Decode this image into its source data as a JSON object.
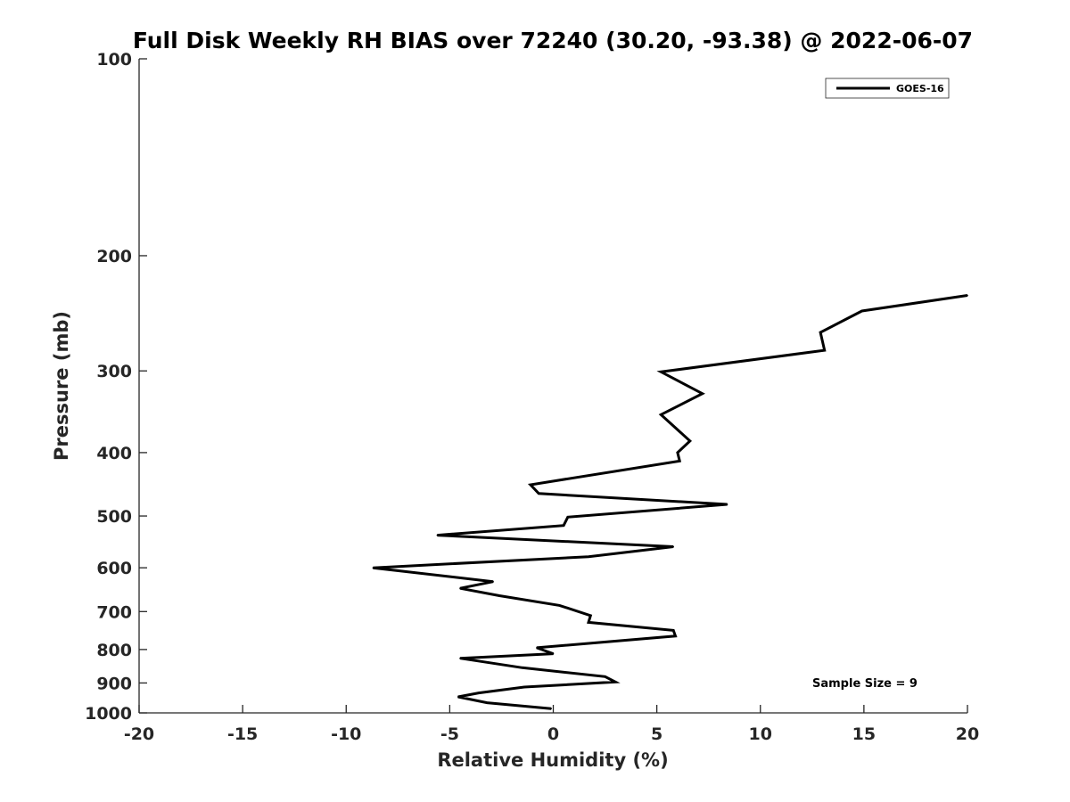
{
  "chart_data": {
    "type": "line",
    "title": "Full Disk Weekly RH BIAS over 72240 (30.20, -93.38) @ 2022-06-07",
    "xlabel": "Relative Humidity (%)",
    "ylabel": "Pressure (mb)",
    "xlim": [
      -20,
      20
    ],
    "ylim": [
      100,
      1000
    ],
    "y_scale": "log",
    "y_reversed": true,
    "x_ticks": [
      -20,
      -15,
      -10,
      -5,
      0,
      5,
      10,
      15,
      20
    ],
    "y_ticks": [
      100,
      200,
      300,
      400,
      500,
      600,
      700,
      800,
      900,
      1000
    ],
    "grid": false,
    "legend_position": "top-right",
    "annotation": "Sample Size = 9",
    "line_color": "#000000",
    "series": [
      {
        "name": "GOES-16",
        "points": [
          {
            "x": -0.1,
            "y": 985
          },
          {
            "x": -3.2,
            "y": 965
          },
          {
            "x": -4.6,
            "y": 945
          },
          {
            "x": -3.6,
            "y": 932
          },
          {
            "x": -1.4,
            "y": 913
          },
          {
            "x": 3.0,
            "y": 897
          },
          {
            "x": 2.5,
            "y": 880
          },
          {
            "x": -1.5,
            "y": 853
          },
          {
            "x": -4.5,
            "y": 825
          },
          {
            "x": 0.0,
            "y": 812
          },
          {
            "x": -0.8,
            "y": 795
          },
          {
            "x": 5.9,
            "y": 763
          },
          {
            "x": 5.8,
            "y": 748
          },
          {
            "x": 1.7,
            "y": 727
          },
          {
            "x": 1.8,
            "y": 710
          },
          {
            "x": 0.3,
            "y": 685
          },
          {
            "x": -2.6,
            "y": 662
          },
          {
            "x": -4.5,
            "y": 645
          },
          {
            "x": -2.9,
            "y": 630
          },
          {
            "x": -8.7,
            "y": 600
          },
          {
            "x": 1.7,
            "y": 577
          },
          {
            "x": 5.8,
            "y": 557
          },
          {
            "x": -5.6,
            "y": 535
          },
          {
            "x": 0.5,
            "y": 517
          },
          {
            "x": 0.7,
            "y": 502
          },
          {
            "x": 8.4,
            "y": 480
          },
          {
            "x": -0.7,
            "y": 462
          },
          {
            "x": -1.1,
            "y": 448
          },
          {
            "x": 6.1,
            "y": 412
          },
          {
            "x": 6.0,
            "y": 400
          },
          {
            "x": 6.6,
            "y": 384
          },
          {
            "x": 5.2,
            "y": 350
          },
          {
            "x": 7.2,
            "y": 325
          },
          {
            "x": 5.2,
            "y": 301
          },
          {
            "x": 13.1,
            "y": 279
          },
          {
            "x": 12.9,
            "y": 262
          },
          {
            "x": 14.9,
            "y": 243
          },
          {
            "x": 20.0,
            "y": 230
          }
        ]
      }
    ]
  }
}
